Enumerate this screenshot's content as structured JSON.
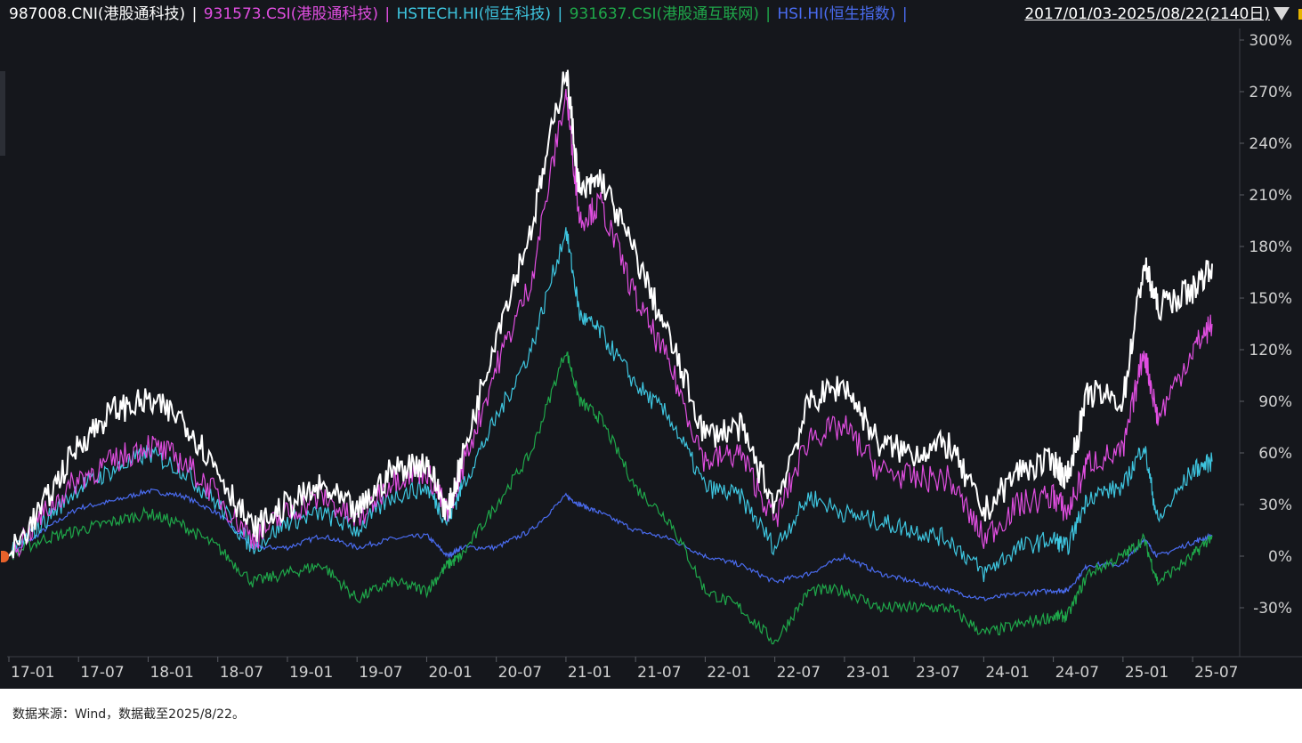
{
  "legend": [
    {
      "label": "987008.CNI(港股通科技)",
      "color": "#ffffff"
    },
    {
      "label": "931573.CSI(港股通科技)",
      "color": "#e04ee0"
    },
    {
      "label": "HSTECH.HI(恒生科技)",
      "color": "#3ec6e0"
    },
    {
      "label": "931637.CSI(港股通互联网)",
      "color": "#1fa84a"
    },
    {
      "label": "HSI.HI(恒生指数)",
      "color": "#4a6cf0"
    }
  ],
  "separator": "|",
  "date_range": "2017/01/03-2025/08/22(2140日)",
  "footer": "数据来源：Wind，数据截至2025/8/22。",
  "chart_data": {
    "type": "line",
    "background": "#15171c",
    "x_tick_labels": [
      "17-01",
      "17-07",
      "18-01",
      "18-07",
      "19-01",
      "19-07",
      "20-01",
      "20-07",
      "21-01",
      "21-07",
      "22-01",
      "22-07",
      "23-01",
      "23-07",
      "24-01",
      "24-07",
      "25-01",
      "25-07"
    ],
    "y_tick_labels": [
      "300%",
      "270%",
      "240%",
      "210%",
      "180%",
      "150%",
      "120%",
      "90%",
      "60%",
      "30%",
      "0%",
      "-30%"
    ],
    "y_unit": "%",
    "ylim": [
      -30,
      300
    ],
    "grid": false,
    "x": [
      2017.0,
      2017.25,
      2017.5,
      2017.75,
      2018.0,
      2018.25,
      2018.5,
      2018.75,
      2019.0,
      2019.25,
      2019.5,
      2019.75,
      2020.0,
      2020.15,
      2020.25,
      2020.5,
      2020.75,
      2021.0,
      2021.1,
      2021.25,
      2021.5,
      2021.75,
      2022.0,
      2022.25,
      2022.5,
      2022.75,
      2023.0,
      2023.25,
      2023.5,
      2023.75,
      2024.0,
      2024.25,
      2024.5,
      2024.6,
      2024.75,
      2025.0,
      2025.15,
      2025.25,
      2025.5,
      2025.64
    ],
    "series": [
      {
        "name": "987008.CNI(港股通科技)",
        "color": "#ffffff",
        "values": [
          0,
          30,
          65,
          85,
          90,
          80,
          50,
          15,
          30,
          40,
          25,
          50,
          55,
          25,
          55,
          130,
          190,
          285,
          210,
          220,
          175,
          125,
          70,
          75,
          30,
          90,
          100,
          65,
          60,
          65,
          25,
          50,
          55,
          45,
          95,
          90,
          170,
          145,
          155,
          170
        ]
      },
      {
        "name": "931573.CSI(港股通科技)",
        "color": "#e04ee0",
        "values": [
          0,
          25,
          45,
          55,
          65,
          55,
          35,
          10,
          25,
          35,
          20,
          45,
          50,
          25,
          50,
          110,
          160,
          270,
          195,
          205,
          150,
          110,
          55,
          60,
          20,
          70,
          75,
          50,
          45,
          45,
          10,
          30,
          35,
          25,
          55,
          60,
          120,
          80,
          120,
          135
        ]
      },
      {
        "name": "HSTECH.HI(恒生科技)",
        "color": "#3ec6e0",
        "values": [
          0,
          20,
          40,
          50,
          60,
          50,
          30,
          5,
          20,
          25,
          15,
          35,
          40,
          20,
          40,
          80,
          120,
          190,
          140,
          130,
          100,
          80,
          40,
          35,
          5,
          35,
          25,
          20,
          15,
          10,
          -10,
          5,
          10,
          5,
          35,
          40,
          65,
          20,
          50,
          55
        ]
      },
      {
        "name": "931637.CSI(港股通互联网)",
        "color": "#1fa84a",
        "values": [
          0,
          10,
          15,
          20,
          25,
          18,
          5,
          -15,
          -10,
          -5,
          -25,
          -15,
          -20,
          -5,
          0,
          30,
          60,
          120,
          90,
          80,
          40,
          20,
          -20,
          -30,
          -50,
          -20,
          -20,
          -30,
          -30,
          -30,
          -45,
          -40,
          -35,
          -35,
          -10,
          0,
          10,
          -15,
          0,
          12
        ]
      },
      {
        "name": "HSI.HI(恒生指数)",
        "color": "#4a6cf0",
        "values": [
          0,
          15,
          28,
          32,
          38,
          35,
          25,
          5,
          5,
          12,
          5,
          10,
          12,
          0,
          5,
          5,
          15,
          35,
          30,
          25,
          15,
          10,
          0,
          -5,
          -15,
          -10,
          0,
          -10,
          -15,
          -20,
          -25,
          -22,
          -20,
          -20,
          -5,
          -5,
          10,
          0,
          8,
          12
        ]
      }
    ]
  }
}
